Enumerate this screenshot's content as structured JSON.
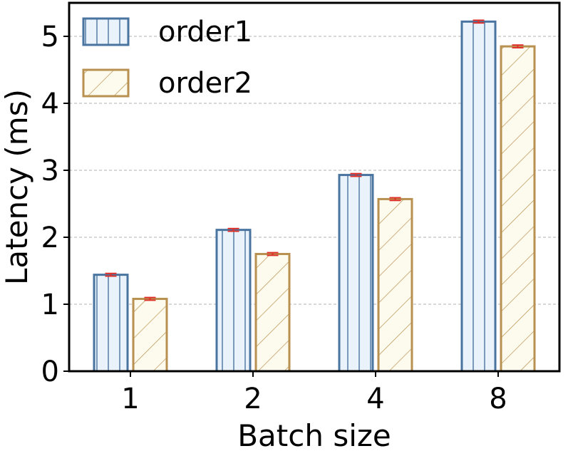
{
  "chart_data": {
    "type": "bar",
    "categories": [
      "1",
      "2",
      "4",
      "8"
    ],
    "series": [
      {
        "name": "order1",
        "values": [
          1.44,
          2.11,
          2.93,
          5.22
        ],
        "errors": [
          0.02,
          0.02,
          0.02,
          0.02
        ],
        "color": "#4a74a0",
        "fill": "#eaf3fb",
        "hatch": "vertical"
      },
      {
        "name": "order2",
        "values": [
          1.08,
          1.75,
          2.57,
          4.85
        ],
        "errors": [
          0.02,
          0.02,
          0.02,
          0.02
        ],
        "color": "#b89050",
        "fill": "#fdfaee",
        "hatch": "diagonal"
      }
    ],
    "error_bar_color": "#e0302a",
    "xlabel": "Batch size",
    "ylabel": "Latency (ms)",
    "ylim": [
      0,
      5.5
    ],
    "yticks": [
      0,
      1,
      2,
      3,
      4,
      5
    ],
    "grid": "horizontal dashed",
    "legend_position": "top-left"
  }
}
